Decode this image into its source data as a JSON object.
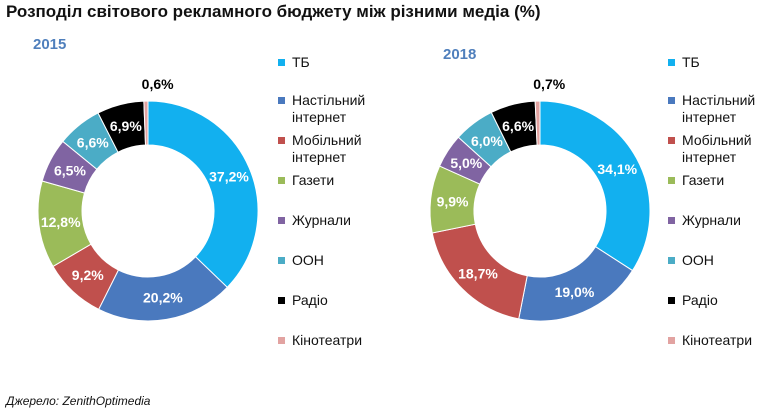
{
  "title": "Розподіл світового рекламного бюджету між різними медіа (%)",
  "source": "Джерело: ZenithOptimedia",
  "legend": [
    {
      "label": "ТБ",
      "color": "#12b0ef"
    },
    {
      "label": "Настільний інтернет",
      "color": "#4a79be"
    },
    {
      "label": "Мобільний інтернет",
      "color": "#c0504d"
    },
    {
      "label": "Газети",
      "color": "#9bbb59"
    },
    {
      "label": "Журнали",
      "color": "#8064a2"
    },
    {
      "label": "ООН",
      "color": "#4bacc6"
    },
    {
      "label": "Радіо",
      "color": "#000000"
    },
    {
      "label": "Кінотеатри",
      "color": "#e2a3a1"
    }
  ],
  "chart_data": [
    {
      "type": "pie",
      "title": "2015",
      "categories": [
        "ТБ",
        "Настільний інтернет",
        "Мобільний інтернет",
        "Газети",
        "Журнали",
        "ООН",
        "Радіо",
        "Кінотеатри"
      ],
      "values": [
        37.2,
        20.2,
        9.2,
        12.8,
        6.5,
        6.6,
        6.9,
        0.6
      ],
      "labels": [
        "37,2%",
        "20,2%",
        "9,2%",
        "12,8%",
        "6,5%",
        "6,6%",
        "6,9%",
        "0,6%"
      ],
      "colors": [
        "#12b0ef",
        "#4a79be",
        "#c0504d",
        "#9bbb59",
        "#8064a2",
        "#4bacc6",
        "#000000",
        "#e2a3a1"
      ]
    },
    {
      "type": "pie",
      "title": "2018",
      "categories": [
        "ТБ",
        "Настільний інтернет",
        "Мобільний інтернет",
        "Газети",
        "Журнали",
        "ООН",
        "Радіо",
        "Кінотеатри"
      ],
      "values": [
        34.1,
        19.0,
        18.7,
        9.9,
        5.0,
        6.0,
        6.6,
        0.7
      ],
      "labels": [
        "34,1%",
        "19,0%",
        "18,7%",
        "9,9%",
        "5,0%",
        "6,0%",
        "6,6%",
        "0,7%"
      ],
      "colors": [
        "#12b0ef",
        "#4a79be",
        "#c0504d",
        "#9bbb59",
        "#8064a2",
        "#4bacc6",
        "#000000",
        "#e2a3a1"
      ]
    }
  ]
}
